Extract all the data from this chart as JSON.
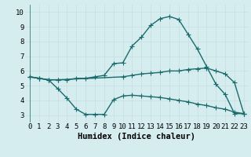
{
  "line1_x": [
    0,
    1,
    2,
    3,
    4,
    5,
    6,
    7,
    8,
    9,
    10,
    11,
    12,
    13,
    14,
    15,
    16,
    17,
    18,
    19,
    20,
    21,
    22,
    23
  ],
  "line1_y": [
    5.6,
    5.5,
    5.4,
    5.4,
    5.4,
    5.5,
    5.5,
    5.6,
    5.7,
    6.5,
    6.55,
    7.7,
    8.3,
    9.1,
    9.55,
    9.7,
    9.5,
    8.5,
    7.5,
    6.3,
    5.1,
    4.4,
    3.1,
    3.1
  ],
  "line2_x": [
    0,
    1,
    2,
    3,
    10,
    11,
    12,
    13,
    14,
    15,
    16,
    17,
    18,
    19,
    20,
    21,
    22,
    23
  ],
  "line2_y": [
    5.6,
    5.5,
    5.4,
    5.4,
    5.6,
    5.7,
    5.8,
    5.85,
    5.9,
    6.0,
    6.0,
    6.1,
    6.15,
    6.2,
    6.0,
    5.8,
    5.2,
    3.1
  ],
  "line3_x": [
    0,
    1,
    2,
    3,
    4,
    5,
    6,
    7,
    8,
    9,
    10,
    11,
    12,
    13,
    14,
    15,
    16,
    17,
    18,
    19,
    20,
    21,
    22,
    23
  ],
  "line3_y": [
    5.6,
    5.5,
    5.4,
    4.8,
    4.15,
    3.4,
    3.05,
    3.05,
    3.05,
    4.05,
    4.3,
    4.35,
    4.3,
    4.25,
    4.2,
    4.1,
    4.0,
    3.9,
    3.75,
    3.65,
    3.5,
    3.4,
    3.2,
    3.1
  ],
  "color": "#1a6b6b",
  "bg_color": "#d6edf0",
  "grid_color": "#c8dfe3",
  "xlabel": "Humidex (Indice chaleur)",
  "ylim": [
    2.5,
    10.5
  ],
  "xlim": [
    -0.5,
    23.5
  ],
  "yticks": [
    3,
    4,
    5,
    6,
    7,
    8,
    9,
    10
  ],
  "xticks": [
    0,
    1,
    2,
    3,
    4,
    5,
    6,
    7,
    8,
    9,
    10,
    11,
    12,
    13,
    14,
    15,
    16,
    17,
    18,
    19,
    20,
    21,
    22,
    23
  ],
  "marker": "+",
  "markersize": 4,
  "linewidth": 1.0,
  "tick_fontsize": 6.5,
  "label_fontsize": 7.5
}
